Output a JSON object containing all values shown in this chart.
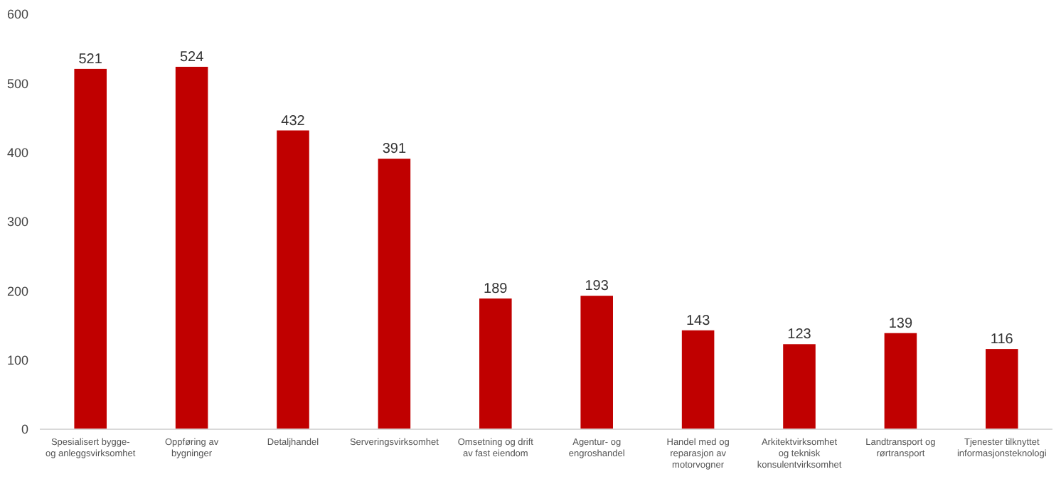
{
  "chart_data": {
    "type": "bar",
    "categories": [
      "Spesialisert bygge- og anleggsvirksomhet",
      "Oppføring av bygninger",
      "Detaljhandel",
      "Serveringsvirksomhet",
      "Omsetning og drift av fast eiendom",
      "Agentur- og engroshandel",
      "Handel med og reparasjon av motorvogner",
      "Arkitektvirksomhet og teknisk konsulentvirksomhet",
      "Landtransport og rørtransport",
      "Tjenester tilknyttet informasjonsteknologi"
    ],
    "values": [
      521,
      524,
      432,
      391,
      189,
      193,
      143,
      123,
      139,
      116
    ],
    "color": "#c00000",
    "ylim": [
      0,
      600
    ],
    "yticks": [
      0,
      100,
      200,
      300,
      400,
      500,
      600
    ],
    "data_labels": true
  }
}
